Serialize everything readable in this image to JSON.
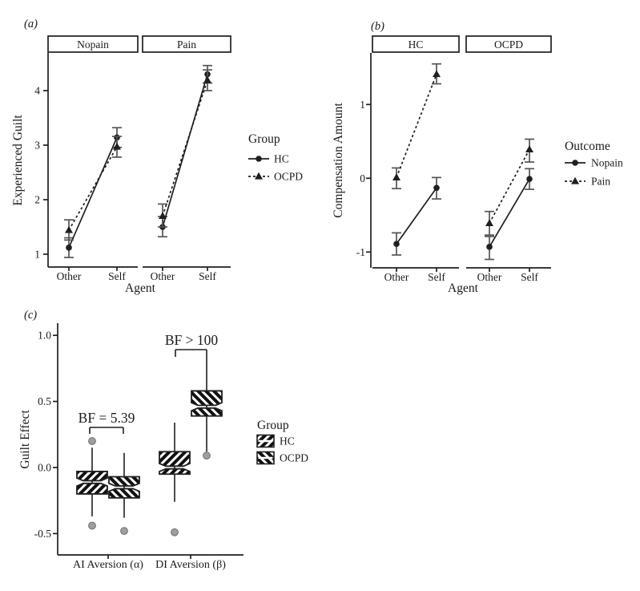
{
  "figure": {
    "colors": {
      "text": "#1a1a1a",
      "line": "#1f1f1f",
      "errorbar": "#555555",
      "outlier_fill": "#9e9e9e",
      "outlier_stroke": "#707070",
      "hatch_ink": "#111111",
      "background": "#ffffff"
    }
  },
  "chart_data": [
    {
      "id": "a",
      "panel_label": "(a)",
      "type": "line",
      "xlabel": "Agent",
      "ylabel": "Experienced Guilt",
      "facet_labels": [
        "Nopain",
        "Pain"
      ],
      "x_categories": [
        "Other",
        "Self"
      ],
      "yticks": [
        "1",
        "2",
        "3",
        "4"
      ],
      "ytick_values": [
        1,
        2,
        3,
        4
      ],
      "ylim": [
        0.77,
        4.69
      ],
      "grid": false,
      "legend": {
        "title": "Group",
        "position": "right",
        "entries": [
          {
            "label": "HC",
            "marker": "circle",
            "linestyle": "solid"
          },
          {
            "label": "OCPD",
            "marker": "triangle",
            "linestyle": "dashed"
          }
        ]
      },
      "series": [
        {
          "name": "HC",
          "facet": "Nopain",
          "marker": "circle",
          "linestyle": "solid",
          "points": [
            {
              "x": "Other",
              "y": 1.12,
              "ci": [
                0.94,
                1.3
              ]
            },
            {
              "x": "Self",
              "y": 3.14,
              "ci": [
                2.96,
                3.32
              ]
            }
          ]
        },
        {
          "name": "OCPD",
          "facet": "Nopain",
          "marker": "triangle",
          "linestyle": "dashed",
          "points": [
            {
              "x": "Other",
              "y": 1.44,
              "ci": [
                1.26,
                1.63
              ]
            },
            {
              "x": "Self",
              "y": 2.97,
              "ci": [
                2.78,
                3.16
              ]
            }
          ]
        },
        {
          "name": "HC",
          "facet": "Pain",
          "marker": "circle",
          "linestyle": "solid",
          "points": [
            {
              "x": "Other",
              "y": 1.5,
              "ci": [
                1.32,
                1.69
              ]
            },
            {
              "x": "Self",
              "y": 4.3,
              "ci": [
                4.14,
                4.46
              ]
            }
          ]
        },
        {
          "name": "OCPD",
          "facet": "Pain",
          "marker": "triangle",
          "linestyle": "dashed",
          "points": [
            {
              "x": "Other",
              "y": 1.7,
              "ci": [
                1.5,
                1.92
              ]
            },
            {
              "x": "Self",
              "y": 4.19,
              "ci": [
                4.0,
                4.38
              ]
            }
          ]
        }
      ]
    },
    {
      "id": "b",
      "panel_label": "(b)",
      "type": "line",
      "xlabel": "Agent",
      "ylabel": "Compensation Amount",
      "facet_labels": [
        "HC",
        "OCPD"
      ],
      "x_categories": [
        "Other",
        "Self"
      ],
      "yticks": [
        "-1",
        "0",
        "1"
      ],
      "ytick_values": [
        -1,
        0,
        1
      ],
      "ylim": [
        -1.3,
        1.7
      ],
      "grid": false,
      "legend": {
        "title": "Outcome",
        "position": "right",
        "entries": [
          {
            "label": "Nopain",
            "marker": "circle",
            "linestyle": "solid"
          },
          {
            "label": "Pain",
            "marker": "triangle",
            "linestyle": "dashed"
          }
        ]
      },
      "series": [
        {
          "name": "Nopain",
          "facet": "HC",
          "marker": "circle",
          "linestyle": "solid",
          "points": [
            {
              "x": "Other",
              "y": -0.89,
              "ci": [
                -1.04,
                -0.74
              ]
            },
            {
              "x": "Self",
              "y": -0.13,
              "ci": [
                -0.28,
                0.01
              ]
            }
          ]
        },
        {
          "name": "Pain",
          "facet": "HC",
          "marker": "triangle",
          "linestyle": "dashed",
          "points": [
            {
              "x": "Other",
              "y": 0.01,
              "ci": [
                -0.14,
                0.14
              ]
            },
            {
              "x": "Self",
              "y": 1.41,
              "ci": [
                1.28,
                1.55
              ]
            }
          ]
        },
        {
          "name": "Nopain",
          "facet": "OCPD",
          "marker": "circle",
          "linestyle": "solid",
          "points": [
            {
              "x": "Other",
              "y": -0.93,
              "ci": [
                -1.1,
                -0.79
              ]
            },
            {
              "x": "Self",
              "y": -0.01,
              "ci": [
                -0.15,
                0.13
              ]
            }
          ]
        },
        {
          "name": "Pain",
          "facet": "OCPD",
          "marker": "triangle",
          "linestyle": "dashed",
          "points": [
            {
              "x": "Other",
              "y": -0.61,
              "ci": [
                -0.77,
                -0.45
              ]
            },
            {
              "x": "Self",
              "y": 0.39,
              "ci": [
                0.22,
                0.53
              ]
            }
          ]
        }
      ]
    },
    {
      "id": "c",
      "panel_label": "(c)",
      "type": "boxplot",
      "xlabel": "",
      "ylabel": "Guilt Effect",
      "x_categories": [
        "AI Aversion (α)",
        "DI Aversion (β)"
      ],
      "yticks": [
        "-0.5",
        "0.0",
        "0.5",
        "1.0"
      ],
      "ytick_values": [
        -0.5,
        0.0,
        0.5,
        1.0
      ],
      "ylim": [
        -0.66,
        1.09
      ],
      "grid": false,
      "legend": {
        "title": "Group",
        "position": "right",
        "entries": [
          {
            "label": "HC",
            "hatch": "forward"
          },
          {
            "label": "OCPD",
            "hatch": "back"
          }
        ]
      },
      "boxes": [
        {
          "category": "AI Aversion (α)",
          "group": "HC",
          "hatch": "forward",
          "median": -0.11,
          "q1": -0.2,
          "q3": -0.03,
          "whisker_low": -0.37,
          "whisker_high": 0.15,
          "outliers": [
            0.2,
            -0.44
          ]
        },
        {
          "category": "AI Aversion (α)",
          "group": "OCPD",
          "hatch": "back",
          "median": -0.15,
          "q1": -0.23,
          "q3": -0.07,
          "whisker_low": -0.38,
          "whisker_high": 0.11,
          "outliers": [
            -0.48
          ]
        },
        {
          "category": "DI Aversion (β)",
          "group": "HC",
          "hatch": "forward",
          "median": 0.0,
          "q1": -0.05,
          "q3": 0.12,
          "whisker_low": -0.26,
          "whisker_high": 0.34,
          "outliers": [
            -0.49
          ]
        },
        {
          "category": "DI Aversion (β)",
          "group": "OCPD",
          "hatch": "back",
          "median": 0.46,
          "q1": 0.39,
          "q3": 0.58,
          "whisker_low": 0.12,
          "whisker_high": 0.82,
          "outliers": [
            0.09
          ]
        }
      ],
      "annotations": [
        {
          "text": "BF = 5.39",
          "category": "AI Aversion (α)"
        },
        {
          "text": "BF > 100",
          "category": "DI Aversion (β)"
        }
      ]
    }
  ]
}
